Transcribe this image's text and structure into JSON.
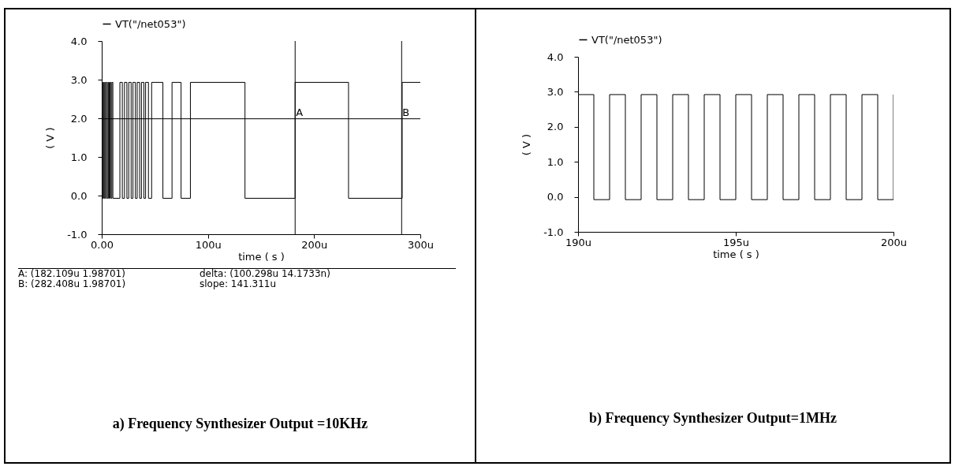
{
  "chart_data": [
    {
      "type": "step",
      "title": "a) Frequency Synthesizer Output =10KHz",
      "xlabel": "time ( s )",
      "ylabel": "( V )",
      "x": [
        0,
        0.6,
        1.3,
        2.0,
        2.8,
        3.6,
        4.4,
        5.3,
        6.2,
        7.1,
        7.9,
        8.8,
        9.6,
        10.5,
        17.1,
        19.4,
        21.4,
        23.7,
        25.4,
        27.7,
        29.4,
        31.7,
        33.4,
        35.7,
        37.4,
        39.7,
        41.3,
        44.0,
        47.0,
        57.6,
        66.2,
        74.7,
        83.5,
        134.9,
        182.1,
        232.4,
        282.9,
        300
      ],
      "series": [
        {
          "name": "VT(\"/net053\")",
          "color": "#000000",
          "values": [
            2.93,
            -0.07,
            2.93,
            -0.07,
            2.93,
            -0.07,
            2.93,
            -0.07,
            2.93,
            -0.07,
            2.93,
            -0.07,
            2.93,
            -0.07,
            2.93,
            -0.07,
            2.93,
            -0.07,
            2.93,
            -0.07,
            2.93,
            -0.07,
            2.93,
            -0.07,
            2.93,
            -0.07,
            2.93,
            -0.07,
            2.93,
            -0.07,
            2.93,
            -0.07,
            2.93,
            -0.07,
            2.93,
            -0.07,
            2.93,
            2.93
          ]
        }
      ],
      "xlim": [
        0,
        300
      ],
      "xticks": [
        {
          "value": 0,
          "label": "0.00"
        },
        {
          "value": 100,
          "label": "100u"
        },
        {
          "value": 200,
          "label": "200u"
        },
        {
          "value": 300,
          "label": "300u"
        }
      ],
      "ylim": [
        -1,
        4
      ],
      "yticks": [
        {
          "value": -1,
          "label": "-1.0"
        },
        {
          "value": 0,
          "label": "0.0"
        },
        {
          "value": 1,
          "label": "1.0"
        },
        {
          "value": 2,
          "label": "2.0"
        },
        {
          "value": 3,
          "label": "3.0"
        },
        {
          "value": 4,
          "label": "4.0"
        }
      ],
      "ref_lines": [
        {
          "axis": "x",
          "value": 182.109,
          "label": "A"
        },
        {
          "axis": "x",
          "value": 282.408,
          "label": "B"
        },
        {
          "axis": "y",
          "value": 1.98701
        }
      ],
      "annotations": [
        "A: (182.109u 1.98701)",
        "delta: (100.298u 14.1733n)",
        "B: (282.408u 1.98701)",
        "slope: 141.311u"
      ],
      "legend": "top left"
    },
    {
      "type": "step",
      "title": "b) Frequency Synthesizer Output=1MHz",
      "xlabel": "time ( s )",
      "ylabel": "( V )",
      "x": [
        190,
        190.5,
        191,
        191.5,
        192,
        192.5,
        193,
        193.5,
        194,
        194.5,
        195,
        195.5,
        196,
        196.5,
        197,
        197.5,
        198,
        198.5,
        199,
        199.5,
        200
      ],
      "series": [
        {
          "name": "VT(\"/net053\")",
          "color": "#000000",
          "values": [
            2.92,
            -0.08,
            2.92,
            -0.08,
            2.92,
            -0.08,
            2.92,
            -0.08,
            2.92,
            -0.08,
            2.92,
            -0.08,
            2.92,
            -0.08,
            2.92,
            -0.08,
            2.92,
            -0.08,
            2.92,
            -0.08,
            2.92
          ]
        }
      ],
      "xlim": [
        190,
        200
      ],
      "xticks": [
        {
          "value": 190,
          "label": "190u"
        },
        {
          "value": 195,
          "label": "195u"
        },
        {
          "value": 200,
          "label": "200u"
        }
      ],
      "ylim": [
        -1,
        4
      ],
      "yticks": [
        {
          "value": -1,
          "label": "-1.0"
        },
        {
          "value": 0,
          "label": "0.0"
        },
        {
          "value": 1,
          "label": "1.0"
        },
        {
          "value": 2,
          "label": "2.0"
        },
        {
          "value": 3,
          "label": "3.0"
        },
        {
          "value": 4,
          "label": "4.0"
        }
      ],
      "legend": "top left"
    }
  ]
}
